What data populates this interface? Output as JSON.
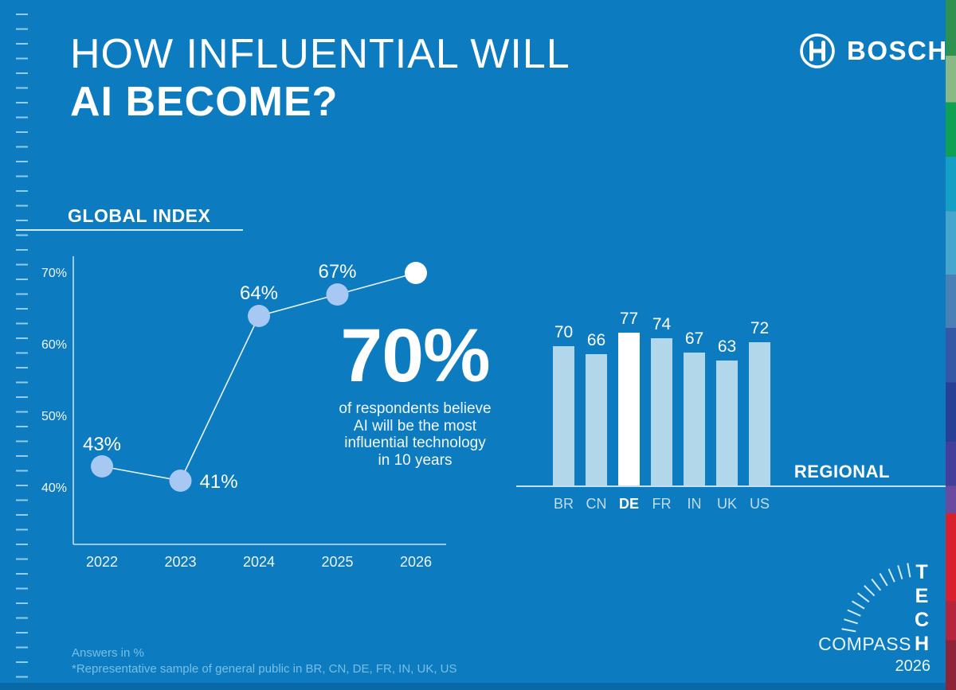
{
  "header": {
    "title_line1": "HOW INFLUENTIAL WILL",
    "title_line2": "AI BECOME?",
    "brand": "BOSCH"
  },
  "annotation": {
    "headline": "70%",
    "body": "of respondents believe\nAI will be the most\ninfluential technology\nin 10 years"
  },
  "footnotes": {
    "line1": "Answers in %",
    "line2": "*Representative sample of general public in BR, CN, DE, FR, IN, UK, US"
  },
  "badge": {
    "vertical_word": "TECH",
    "horizontal_word": "COMPASS",
    "year": "2026"
  },
  "colors": {
    "background": "#0c7bc0",
    "point_blue": "#a6c8f3",
    "point_highlight": "#ffffff",
    "bar_blue": "#b2d7ea",
    "bar_highlight": "#ffffff",
    "line_stroke": "#eaf4fb",
    "axis_stroke": "#d8ecf8",
    "label_white": "#ffffff",
    "category_blue": "#c2ddee",
    "footnote_blue": "#79bfe6",
    "strip_segments": [
      "#2f9150",
      "#8ab985",
      "#0ea156",
      "#14a0c4",
      "#46a6ce",
      "#4a80b6",
      "#3558a5",
      "#273f94",
      "#443d9a",
      "#6a4a9e",
      "#da202d",
      "#b5243c",
      "#8e2338"
    ]
  },
  "chart_data": [
    {
      "type": "line",
      "title": "GLOBAL INDEX",
      "x": [
        "2022",
        "2023",
        "2024",
        "2025",
        "2026"
      ],
      "values": [
        43,
        41,
        64,
        67,
        70
      ],
      "point_labels": [
        "43%",
        "41%",
        "64%",
        "67%",
        ""
      ],
      "y_tick_values": [
        40,
        50,
        60,
        70
      ],
      "y_tick_suffix": "%",
      "ylim": [
        36,
        73
      ],
      "grid": false,
      "legend": "none",
      "highlight_last_point": true,
      "note": "values are percent of respondents per year"
    },
    {
      "type": "bar",
      "title": "REGIONAL",
      "categories": [
        "BR",
        "CN",
        "DE",
        "FR",
        "IN",
        "UK",
        "US"
      ],
      "values": [
        70,
        66,
        77,
        74,
        67,
        63,
        72
      ],
      "highlight_category": "DE",
      "ylim": [
        0,
        77
      ],
      "grid": false,
      "legend": "none"
    }
  ]
}
